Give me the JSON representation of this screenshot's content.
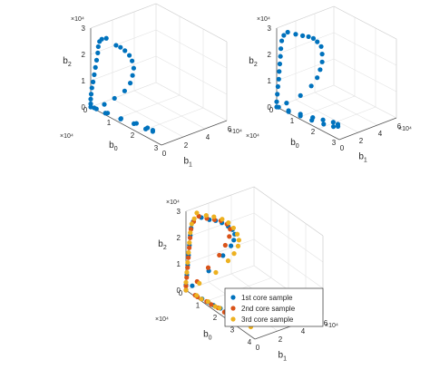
{
  "figure": {
    "colors": {
      "series1": "#0072BD",
      "series2": "#D95319",
      "series3": "#EDB120",
      "grid": "#e3e3e3",
      "axis": "#555555",
      "text": "#262626"
    }
  },
  "chart_data": [
    {
      "type": "scatter",
      "projection": "3d",
      "grid": true,
      "legend": null,
      "xlabel": "b",
      "xlabel_sub": "0",
      "ylabel": "b",
      "ylabel_sub": "1",
      "zlabel": "b",
      "zlabel_sub": "2",
      "xlim": [
        0,
        30000
      ],
      "ylim": [
        0,
        60000
      ],
      "zlim": [
        0,
        30000
      ],
      "xticks": [
        "0",
        "1",
        "2",
        "3"
      ],
      "yticks": [
        "0",
        "2",
        "4",
        "6"
      ],
      "zticks": [
        "0",
        "1",
        "2",
        "3"
      ],
      "x_multiplier": "×10⁴",
      "y_multiplier": "×10⁴",
      "z_multiplier": "×10⁴",
      "series": [
        {
          "points": [
            [
              5000,
              3500,
              28000
            ],
            [
              7500,
              7000,
              26000
            ],
            [
              8000,
              10000,
              25000
            ],
            [
              8500,
              13000,
              23500
            ],
            [
              9000,
              16000,
              21500
            ],
            [
              9000,
              18500,
              19000
            ],
            [
              9000,
              20000,
              16000
            ],
            [
              8500,
              20000,
              13000
            ],
            [
              8000,
              19000,
              10000
            ],
            [
              7000,
              16000,
              7000
            ],
            [
              5000,
              11000,
              4000
            ],
            [
              3000,
              6000,
              1500
            ],
            [
              1000,
              1000,
              0
            ],
            [
              6000,
              500,
              500
            ],
            [
              12000,
              1500,
              1000
            ],
            [
              18000,
              3000,
              2000
            ],
            [
              22000,
              4500,
              2000
            ],
            [
              24000,
              5000,
              2000
            ],
            [
              24000,
              5000,
              1500
            ],
            [
              21000,
              5000,
              1000
            ],
            [
              16000,
              5000,
              600
            ],
            [
              11000,
              4000,
              300
            ],
            [
              6000,
              2500,
              200
            ],
            [
              2000,
              900,
              100
            ],
            [
              0,
              0,
              0
            ],
            [
              0,
              0,
              1200
            ],
            [
              0,
              0,
              3000
            ],
            [
              200,
              0,
              5000
            ],
            [
              500,
              0,
              7500
            ],
            [
              1000,
              0,
              10000
            ],
            [
              1500,
              0,
              13000
            ],
            [
              2000,
              0,
              16000
            ],
            [
              2500,
              0,
              19000
            ],
            [
              3000,
              0,
              22000
            ],
            [
              3200,
              0,
              24500
            ],
            [
              3500,
              500,
              26500
            ],
            [
              4000,
              1500,
              27500
            ]
          ]
        }
      ]
    },
    {
      "type": "scatter",
      "projection": "3d",
      "grid": true,
      "legend": null,
      "xlabel": "b",
      "xlabel_sub": "0",
      "ylabel": "b",
      "ylabel_sub": "1",
      "zlabel": "b",
      "zlabel_sub": "2",
      "xlim": [
        0,
        30000
      ],
      "ylim": [
        0,
        60000
      ],
      "zlim": [
        0,
        30000
      ],
      "xticks": [
        "0",
        "1",
        "2",
        "3"
      ],
      "yticks": [
        "0",
        "2",
        "4",
        "6"
      ],
      "zticks": [
        "0",
        "1",
        "2",
        "3"
      ],
      "x_multiplier": "×10⁴",
      "y_multiplier": "×10⁴",
      "z_multiplier": "×10⁴",
      "series": [
        {
          "points": [
            [
              3000,
              5000,
              29000
            ],
            [
              5000,
              9000,
              28500
            ],
            [
              6500,
              13000,
              28000
            ],
            [
              7500,
              17000,
              27500
            ],
            [
              8000,
              21000,
              26500
            ],
            [
              8500,
              24000,
              25000
            ],
            [
              9000,
              27000,
              23000
            ],
            [
              9000,
              28000,
              20000
            ],
            [
              9000,
              28000,
              17000
            ],
            [
              8500,
              27000,
              14000
            ],
            [
              8000,
              25000,
              11000
            ],
            [
              7000,
              21000,
              8000
            ],
            [
              5000,
              14000,
              4500
            ],
            [
              2000,
              6000,
              1500
            ],
            [
              500,
              1000,
              0
            ],
            [
              5000,
              1500,
              500
            ],
            [
              10000,
              3000,
              1000
            ],
            [
              15000,
              5000,
              1500
            ],
            [
              19000,
              7000,
              2000
            ],
            [
              23000,
              9000,
              2500
            ],
            [
              25000,
              9500,
              2500
            ],
            [
              25500,
              8500,
              2000
            ],
            [
              24000,
              7000,
              1500
            ],
            [
              20000,
              5500,
              1000
            ],
            [
              15000,
              4000,
              600
            ],
            [
              10000,
              3000,
              300
            ],
            [
              5000,
              1500,
              100
            ],
            [
              0,
              0,
              0
            ],
            [
              0,
              0,
              2000
            ],
            [
              300,
              0,
              5000
            ],
            [
              600,
              0,
              8000
            ],
            [
              1000,
              0,
              11000
            ],
            [
              1200,
              0,
              14000
            ],
            [
              1500,
              0,
              17000
            ],
            [
              1800,
              0,
              20000
            ],
            [
              2000,
              0,
              23000
            ],
            [
              2200,
              500,
              26000
            ],
            [
              2500,
              2000,
              28000
            ]
          ]
        }
      ]
    },
    {
      "type": "scatter",
      "projection": "3d",
      "grid": true,
      "legend": "bottom-right",
      "xlabel": "b",
      "xlabel_sub": "0",
      "ylabel": "b",
      "ylabel_sub": "1",
      "zlabel": "b",
      "zlabel_sub": "2",
      "xlim": [
        0,
        40000
      ],
      "ylim": [
        0,
        60000
      ],
      "zlim": [
        0,
        30000
      ],
      "xticks": [
        "0",
        "1",
        "2",
        "3",
        "4"
      ],
      "yticks": [
        "0",
        "2",
        "4",
        "6"
      ],
      "zticks": [
        "0",
        "1",
        "2",
        "3"
      ],
      "x_multiplier": "×10⁴",
      "y_multiplier": "×10⁴",
      "z_multiplier": "×10⁴",
      "series": [
        {
          "name": "1st core sample",
          "points": [
            [
              5000,
              6000,
              29000
            ],
            [
              7000,
              10000,
              28500
            ],
            [
              8000,
              14000,
              28000
            ],
            [
              9000,
              18000,
              27000
            ],
            [
              10000,
              22000,
              25500
            ],
            [
              10500,
              25000,
              24000
            ],
            [
              10500,
              27000,
              22000
            ],
            [
              10000,
              27000,
              19500
            ],
            [
              9000,
              26000,
              17000
            ],
            [
              7000,
              22000,
              13000
            ],
            [
              4000,
              14000,
              7000
            ],
            [
              1000,
              4000,
              1500
            ],
            [
              0,
              0,
              0
            ],
            [
              6000,
              500,
              500
            ],
            [
              12000,
              1500,
              800
            ],
            [
              18000,
              3000,
              1000
            ],
            [
              24000,
              4500,
              1200
            ],
            [
              28000,
              5000,
              1200
            ],
            [
              25000,
              4500,
              800
            ],
            [
              20000,
              4000,
              500
            ],
            [
              14000,
              3000,
              300
            ],
            [
              8000,
              2000,
              100
            ],
            [
              0,
              0,
              2000
            ],
            [
              500,
              0,
              6000
            ],
            [
              1000,
              0,
              10000
            ],
            [
              1500,
              0,
              14000
            ],
            [
              2000,
              0,
              18000
            ],
            [
              2500,
              0,
              22000
            ],
            [
              3000,
              0,
              25000
            ],
            [
              3500,
              1000,
              27500
            ]
          ]
        },
        {
          "name": "2nd core sample",
          "points": [
            [
              4500,
              4500,
              29500
            ],
            [
              6500,
              8500,
              29000
            ],
            [
              8000,
              13000,
              28500
            ],
            [
              9000,
              17000,
              28000
            ],
            [
              10000,
              21000,
              26500
            ],
            [
              10500,
              23000,
              24500
            ],
            [
              10000,
              23000,
              21500
            ],
            [
              9000,
              21000,
              18000
            ],
            [
              7500,
              18000,
              14000
            ],
            [
              5000,
              12000,
              9000
            ],
            [
              2500,
              6000,
              3500
            ],
            [
              0,
              0,
              0
            ],
            [
              5000,
              500,
              300
            ],
            [
              11000,
              1500,
              600
            ],
            [
              17000,
              2500,
              800
            ],
            [
              22000,
              3500,
              900
            ],
            [
              27000,
              4500,
              900
            ],
            [
              30000,
              5000,
              900
            ],
            [
              26000,
              4500,
              600
            ],
            [
              20000,
              3500,
              400
            ],
            [
              13000,
              2500,
              200
            ],
            [
              6000,
              1000,
              100
            ],
            [
              0,
              0,
              1500
            ],
            [
              400,
              0,
              5000
            ],
            [
              900,
              0,
              9000
            ],
            [
              1400,
              0,
              13000
            ],
            [
              1900,
              0,
              17000
            ],
            [
              2400,
              0,
              21000
            ],
            [
              2900,
              0,
              24500
            ],
            [
              3500,
              1500,
              27500
            ]
          ]
        },
        {
          "name": "3rd core sample",
          "points": [
            [
              3000,
              5000,
              30000
            ],
            [
              5500,
              9500,
              29500
            ],
            [
              7000,
              14000,
              29000
            ],
            [
              8500,
              19000,
              28000
            ],
            [
              9500,
              23000,
              26500
            ],
            [
              10500,
              26000,
              24500
            ],
            [
              11000,
              28500,
              22000
            ],
            [
              11000,
              30000,
              19500
            ],
            [
              10500,
              30000,
              17000
            ],
            [
              9500,
              28000,
              14000
            ],
            [
              8000,
              25000,
              11000
            ],
            [
              5500,
              18000,
              6500
            ],
            [
              2500,
              8000,
              2500
            ],
            [
              0,
              0,
              0
            ],
            [
              5500,
              1000,
              400
            ],
            [
              11500,
              2000,
              700
            ],
            [
              17500,
              3000,
              900
            ],
            [
              23000,
              4000,
              1000
            ],
            [
              28000,
              5000,
              1100
            ],
            [
              32000,
              5500,
              1100
            ],
            [
              34000,
              5500,
              1000
            ],
            [
              29000,
              5000,
              700
            ],
            [
              22000,
              4000,
              500
            ],
            [
              15000,
              3000,
              300
            ],
            [
              8000,
              1500,
              100
            ],
            [
              0,
              0,
              3000
            ],
            [
              500,
              0,
              7000
            ],
            [
              1000,
              0,
              11000
            ],
            [
              1500,
              0,
              15000
            ],
            [
              2000,
              0,
              19000
            ],
            [
              2500,
              0,
              23000
            ],
            [
              3000,
              500,
              26500
            ],
            [
              3500,
              2000,
              28500
            ]
          ]
        }
      ]
    }
  ]
}
